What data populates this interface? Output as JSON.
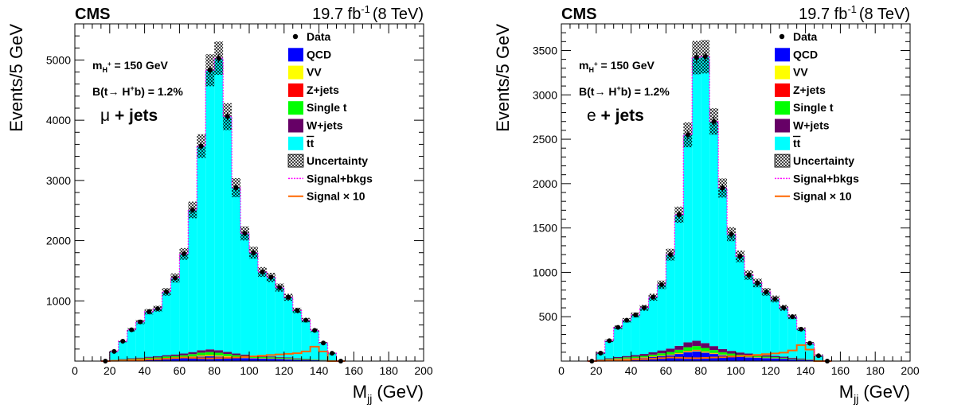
{
  "chart_data": [
    {
      "type": "bar",
      "stacked": true,
      "experiment": "CMS",
      "lumi_label": "19.7 fb",
      "lumi_exponent": "-1",
      "energy_label": "(8 TeV)",
      "xlabel_main": "M",
      "xlabel_sub": "jj",
      "xlabel_unit": "(GeV)",
      "ylabel": "Events/5 GeV",
      "xlim": [
        0,
        200
      ],
      "ylim": [
        0,
        5600
      ],
      "xticks": [
        0,
        20,
        40,
        60,
        80,
        100,
        120,
        140,
        160,
        180,
        200
      ],
      "yticks": [
        1000,
        2000,
        3000,
        4000,
        5000
      ],
      "mass_label_main": "m",
      "mass_label_sub": "H",
      "mass_label_sup": "+",
      "mass_label_value": " = 150 GeV",
      "br_label_pre": "B(t",
      "br_label_arrow": "→",
      "br_label_mid": " H",
      "br_label_sup": "+",
      "br_label_post": "b) = 1.2%",
      "channel_symbol": "μ",
      "channel_rest": " + jets",
      "legend_position": "top-right",
      "legend": [
        {
          "label": "Data",
          "kind": "marker",
          "color": "#000000"
        },
        {
          "label": "QCD",
          "kind": "box",
          "color": "#0000ff"
        },
        {
          "label": "VV",
          "kind": "box",
          "color": "#ffff00"
        },
        {
          "label": "Z+jets",
          "kind": "box",
          "color": "#ff0000"
        },
        {
          "label": "Single t",
          "kind": "box",
          "color": "#00ff00"
        },
        {
          "label": "W+jets",
          "kind": "box",
          "color": "#660066"
        },
        {
          "label": "tt",
          "kind": "box",
          "color": "#00ffff",
          "overline": true
        },
        {
          "label": "Uncertainty",
          "kind": "hatch",
          "color": "#000000"
        },
        {
          "label": "Signal+bkgs",
          "kind": "dotted",
          "color": "#ff00ff"
        },
        {
          "label": "Signal",
          "label_suffix": " × 10",
          "kind": "line",
          "color": "#ff6600"
        }
      ],
      "bin_edges_start": 15,
      "bin_width": 5,
      "data": [
        0,
        160,
        330,
        520,
        650,
        820,
        870,
        1150,
        1380,
        1780,
        2510,
        3570,
        4830,
        5030,
        4060,
        2880,
        2120,
        1800,
        1480,
        1390,
        1220,
        1060,
        840,
        680,
        510,
        300,
        130,
        0
      ],
      "series": [
        {
          "name": "QCD",
          "color": "#0000ff",
          "values": [
            0,
            10,
            15,
            18,
            22,
            28,
            32,
            40,
            45,
            50,
            60,
            75,
            80,
            75,
            65,
            55,
            50,
            45,
            40,
            38,
            35,
            30,
            25,
            20,
            15,
            10,
            5,
            0
          ]
        },
        {
          "name": "VV",
          "color": "#ffff00",
          "values": [
            0,
            0,
            2,
            3,
            4,
            5,
            5,
            6,
            6,
            8,
            10,
            15,
            18,
            15,
            12,
            8,
            6,
            5,
            4,
            4,
            3,
            3,
            2,
            2,
            1,
            1,
            0,
            0
          ]
        },
        {
          "name": "Z+jets",
          "color": "#ff0000",
          "values": [
            0,
            1,
            2,
            3,
            3,
            4,
            4,
            5,
            5,
            6,
            7,
            8,
            8,
            7,
            6,
            5,
            5,
            4,
            4,
            3,
            3,
            3,
            2,
            2,
            1,
            1,
            0,
            0
          ]
        },
        {
          "name": "Single t",
          "color": "#00ff00",
          "values": [
            0,
            4,
            8,
            12,
            15,
            18,
            20,
            25,
            28,
            32,
            38,
            42,
            44,
            42,
            36,
            30,
            26,
            22,
            20,
            18,
            16,
            14,
            12,
            10,
            8,
            5,
            2,
            0
          ]
        },
        {
          "name": "W+jets",
          "color": "#660066",
          "values": [
            0,
            3,
            6,
            10,
            13,
            16,
            18,
            22,
            26,
            30,
            35,
            40,
            45,
            42,
            35,
            28,
            22,
            18,
            16,
            14,
            12,
            10,
            8,
            6,
            5,
            3,
            1,
            0
          ]
        },
        {
          "name": "tt",
          "color": "#00ffff",
          "values": [
            0,
            142,
            297,
            474,
            593,
            749,
            791,
            1052,
            1270,
            1654,
            2360,
            3390,
            4635,
            4849,
            3906,
            2754,
            2011,
            1706,
            1396,
            1313,
            1151,
            1000,
            791,
            640,
            479,
            280,
            122,
            0
          ]
        }
      ],
      "signal_x10": [
        0,
        5,
        10,
        15,
        20,
        28,
        32,
        40,
        50,
        60,
        55,
        48,
        45,
        50,
        55,
        60,
        70,
        80,
        90,
        100,
        110,
        120,
        130,
        160,
        240,
        160,
        0,
        0
      ],
      "uncertainty_frac": 0.055
    },
    {
      "type": "bar",
      "stacked": true,
      "experiment": "CMS",
      "lumi_label": "19.7 fb",
      "lumi_exponent": "-1",
      "energy_label": "(8 TeV)",
      "xlabel_main": "M",
      "xlabel_sub": "jj",
      "xlabel_unit": "(GeV)",
      "ylabel": "Events/5 GeV",
      "xlim": [
        0,
        200
      ],
      "ylim": [
        0,
        3800
      ],
      "xticks": [
        0,
        20,
        40,
        60,
        80,
        100,
        120,
        140,
        160,
        180,
        200
      ],
      "yticks": [
        500,
        1000,
        1500,
        2000,
        2500,
        3000,
        3500
      ],
      "mass_label_main": "m",
      "mass_label_sub": "H",
      "mass_label_sup": "+",
      "mass_label_value": " = 150 GeV",
      "br_label_pre": "B(t",
      "br_label_arrow": "→",
      "br_label_mid": " H",
      "br_label_sup": "+",
      "br_label_post": "b) = 1.2%",
      "channel_symbol": "e",
      "channel_rest": " + jets",
      "legend_position": "top-right",
      "legend": [
        {
          "label": "Data",
          "kind": "marker",
          "color": "#000000"
        },
        {
          "label": "QCD",
          "kind": "box",
          "color": "#0000ff"
        },
        {
          "label": "VV",
          "kind": "box",
          "color": "#ffff00"
        },
        {
          "label": "Z+jets",
          "kind": "box",
          "color": "#ff0000"
        },
        {
          "label": "Single t",
          "kind": "box",
          "color": "#00ff00"
        },
        {
          "label": "W+jets",
          "kind": "box",
          "color": "#660066"
        },
        {
          "label": "tt",
          "kind": "box",
          "color": "#00ffff",
          "overline": true
        },
        {
          "label": "Uncertainty",
          "kind": "hatch",
          "color": "#000000"
        },
        {
          "label": "Signal+bkgs",
          "kind": "dotted",
          "color": "#ff00ff"
        },
        {
          "label": "Signal",
          "label_suffix": " × 10",
          "kind": "line",
          "color": "#ff6600"
        }
      ],
      "bin_edges_start": 15,
      "bin_width": 5,
      "data": [
        0,
        90,
        230,
        380,
        460,
        520,
        600,
        720,
        860,
        1200,
        1650,
        2550,
        3420,
        3430,
        2700,
        1950,
        1430,
        1180,
        970,
        880,
        780,
        700,
        600,
        500,
        360,
        200,
        60,
        0
      ],
      "series": [
        {
          "name": "QCD",
          "color": "#0000ff",
          "values": [
            0,
            10,
            15,
            20,
            25,
            30,
            35,
            45,
            55,
            65,
            80,
            100,
            110,
            95,
            80,
            65,
            55,
            48,
            42,
            38,
            34,
            30,
            26,
            20,
            15,
            10,
            4,
            0
          ]
        },
        {
          "name": "VV",
          "color": "#ffff00",
          "values": [
            0,
            0,
            1,
            2,
            2,
            3,
            3,
            4,
            4,
            5,
            7,
            9,
            10,
            9,
            7,
            5,
            4,
            3,
            3,
            2,
            2,
            2,
            1,
            1,
            1,
            0,
            0,
            0
          ]
        },
        {
          "name": "Z+jets",
          "color": "#ff0000",
          "values": [
            0,
            1,
            2,
            2,
            3,
            3,
            4,
            4,
            5,
            5,
            6,
            7,
            7,
            6,
            5,
            4,
            4,
            3,
            3,
            3,
            2,
            2,
            2,
            1,
            1,
            1,
            0,
            0
          ]
        },
        {
          "name": "Single t",
          "color": "#00ff00",
          "values": [
            0,
            3,
            6,
            9,
            12,
            14,
            16,
            20,
            24,
            28,
            34,
            40,
            42,
            38,
            32,
            26,
            22,
            18,
            16,
            14,
            12,
            10,
            8,
            6,
            5,
            3,
            1,
            0
          ]
        },
        {
          "name": "W+jets",
          "color": "#660066",
          "values": [
            0,
            4,
            8,
            12,
            15,
            18,
            22,
            26,
            32,
            38,
            45,
            55,
            60,
            55,
            45,
            36,
            30,
            25,
            21,
            18,
            16,
            14,
            12,
            10,
            8,
            5,
            2,
            0
          ]
        },
        {
          "name": "tt",
          "color": "#00ffff",
          "values": [
            0,
            72,
            198,
            335,
            403,
            452,
            520,
            621,
            740,
            1059,
            1478,
            2339,
            3191,
            3227,
            2531,
            1814,
            1315,
            1083,
            885,
            805,
            714,
            642,
            551,
            462,
            330,
            181,
            53,
            0
          ]
        }
      ],
      "signal_x10": [
        0,
        3,
        6,
        10,
        14,
        18,
        22,
        28,
        34,
        40,
        38,
        34,
        32,
        36,
        40,
        44,
        50,
        56,
        62,
        70,
        78,
        86,
        95,
        120,
        180,
        130,
        0,
        0
      ],
      "uncertainty_frac": 0.055
    }
  ]
}
